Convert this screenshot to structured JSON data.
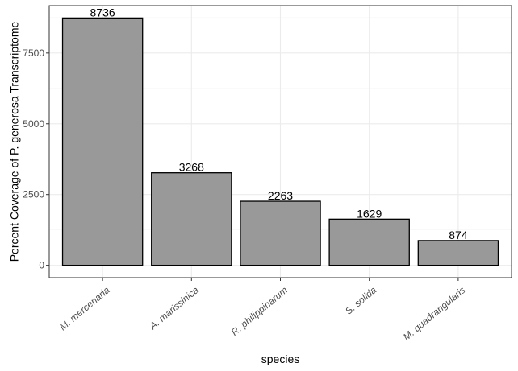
{
  "chart_data": {
    "type": "bar",
    "title": "",
    "xlabel": "species",
    "ylabel": "Percent Coverage of P. generosa Transcriptome",
    "categories": [
      "M. mercenaria",
      "A. marissinica",
      "R. philippinarum",
      "S. solida",
      "M. quadrangularis"
    ],
    "values": [
      8736,
      3268,
      2263,
      1629,
      874
    ],
    "data_labels": [
      "8736",
      "3268",
      "2263",
      "1629",
      "874"
    ],
    "ylim": [
      -437,
      9173
    ],
    "yticks": [
      0,
      2500,
      5000,
      7500
    ],
    "ytick_labels": [
      "0",
      "2500",
      "5000",
      "7500"
    ],
    "grid": true,
    "legend": "none",
    "bar_fill": "#999999",
    "bar_stroke": "#000000",
    "grid_major_color": "#ebebeb",
    "grid_minor_color": "#f5f5f5",
    "panel_border_color": "#333333"
  }
}
